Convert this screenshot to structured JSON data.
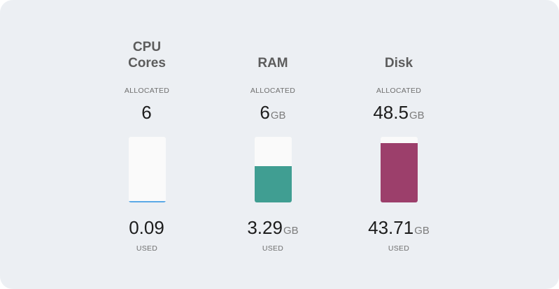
{
  "resources": [
    {
      "key": "cpu",
      "title_line1": "CPU",
      "title_line2": "Cores",
      "allocated_label": "ALLOCATED",
      "allocated_value": "6",
      "allocated_unit": "",
      "used_value": "0.09",
      "used_unit": "",
      "used_label": "USED",
      "used_fraction": 0.015,
      "color": "#5aa9e6"
    },
    {
      "key": "ram",
      "title_line1": "RAM",
      "title_line2": "",
      "allocated_label": "ALLOCATED",
      "allocated_value": "6",
      "allocated_unit": "GB",
      "used_value": "3.29",
      "used_unit": "GB",
      "used_label": "USED",
      "used_fraction": 0.548,
      "color": "#409e92"
    },
    {
      "key": "disk",
      "title_line1": "Disk",
      "title_line2": "",
      "allocated_label": "ALLOCATED",
      "allocated_value": "48.5",
      "allocated_unit": "GB",
      "used_value": "43.71",
      "used_unit": "GB",
      "used_label": "USED",
      "used_fraction": 0.901,
      "color": "#9c3f6b"
    }
  ],
  "colors": {
    "card_background": "#eceff3",
    "gauge_track": "#fafafa"
  }
}
